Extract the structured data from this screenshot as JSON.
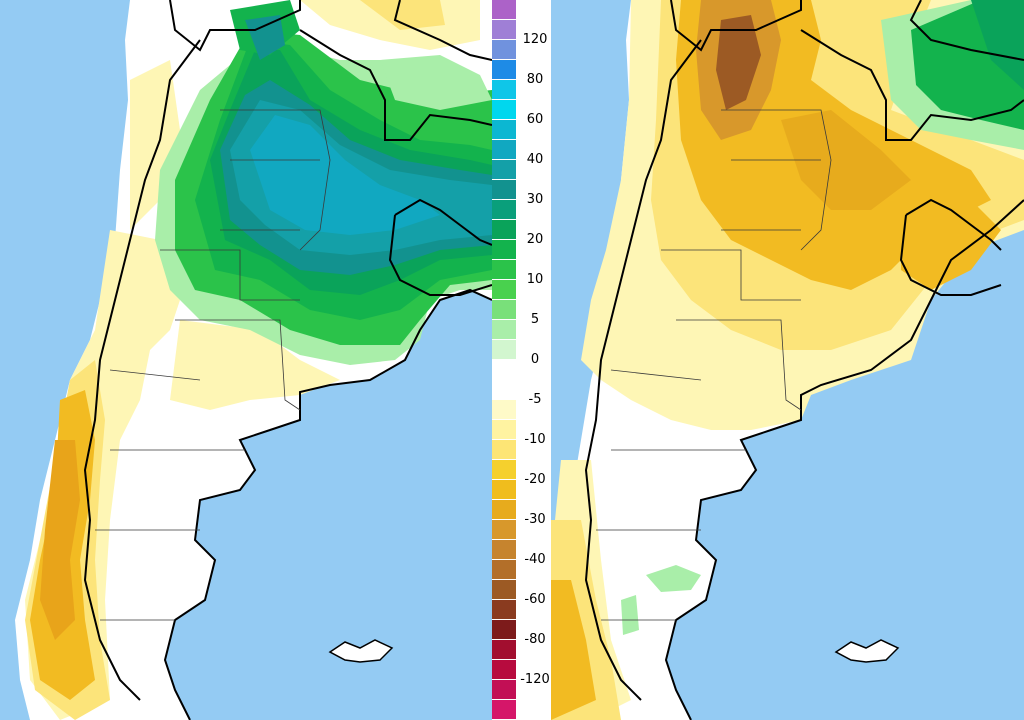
{
  "legend": {
    "colors": [
      "#ac62c8",
      "#9f7fd6",
      "#7092de",
      "#1e8be6",
      "#0fc6e8",
      "#00d7ee",
      "#0cb7d2",
      "#11a8c1",
      "#14a0a8",
      "#12928f",
      "#0a9f7b",
      "#0aa35a",
      "#13b34d",
      "#2bc34a",
      "#49d14e",
      "#79e07a",
      "#a9eea9",
      "#d2f6cf",
      "#ffffff",
      "#ffffff",
      "#fefac8",
      "#fff3a1",
      "#fde575",
      "#f5d02d",
      "#f0bd1d",
      "#e7ab1d",
      "#d8982b",
      "#c6842e",
      "#b36f29",
      "#9c5a24",
      "#8a3b1f",
      "#7d1b1b",
      "#a20e2f",
      "#b70b3e",
      "#c20f55",
      "#d51669"
    ],
    "labels": [
      {
        "text": "120",
        "row": 2
      },
      {
        "text": "80",
        "row": 4
      },
      {
        "text": "60",
        "row": 6
      },
      {
        "text": "40",
        "row": 8
      },
      {
        "text": "30",
        "row": 10
      },
      {
        "text": "20",
        "row": 12
      },
      {
        "text": "10",
        "row": 14
      },
      {
        "text": "5",
        "row": 16
      },
      {
        "text": "0",
        "row": 18
      },
      {
        "text": "-5",
        "row": 20
      },
      {
        "text": "-10",
        "row": 22
      },
      {
        "text": "-20",
        "row": 24
      },
      {
        "text": "-30",
        "row": 26
      },
      {
        "text": "-40",
        "row": 28
      },
      {
        "text": "-60",
        "row": 30
      },
      {
        "text": "-80",
        "row": 32
      },
      {
        "text": "-120",
        "row": 34
      }
    ]
  }
}
